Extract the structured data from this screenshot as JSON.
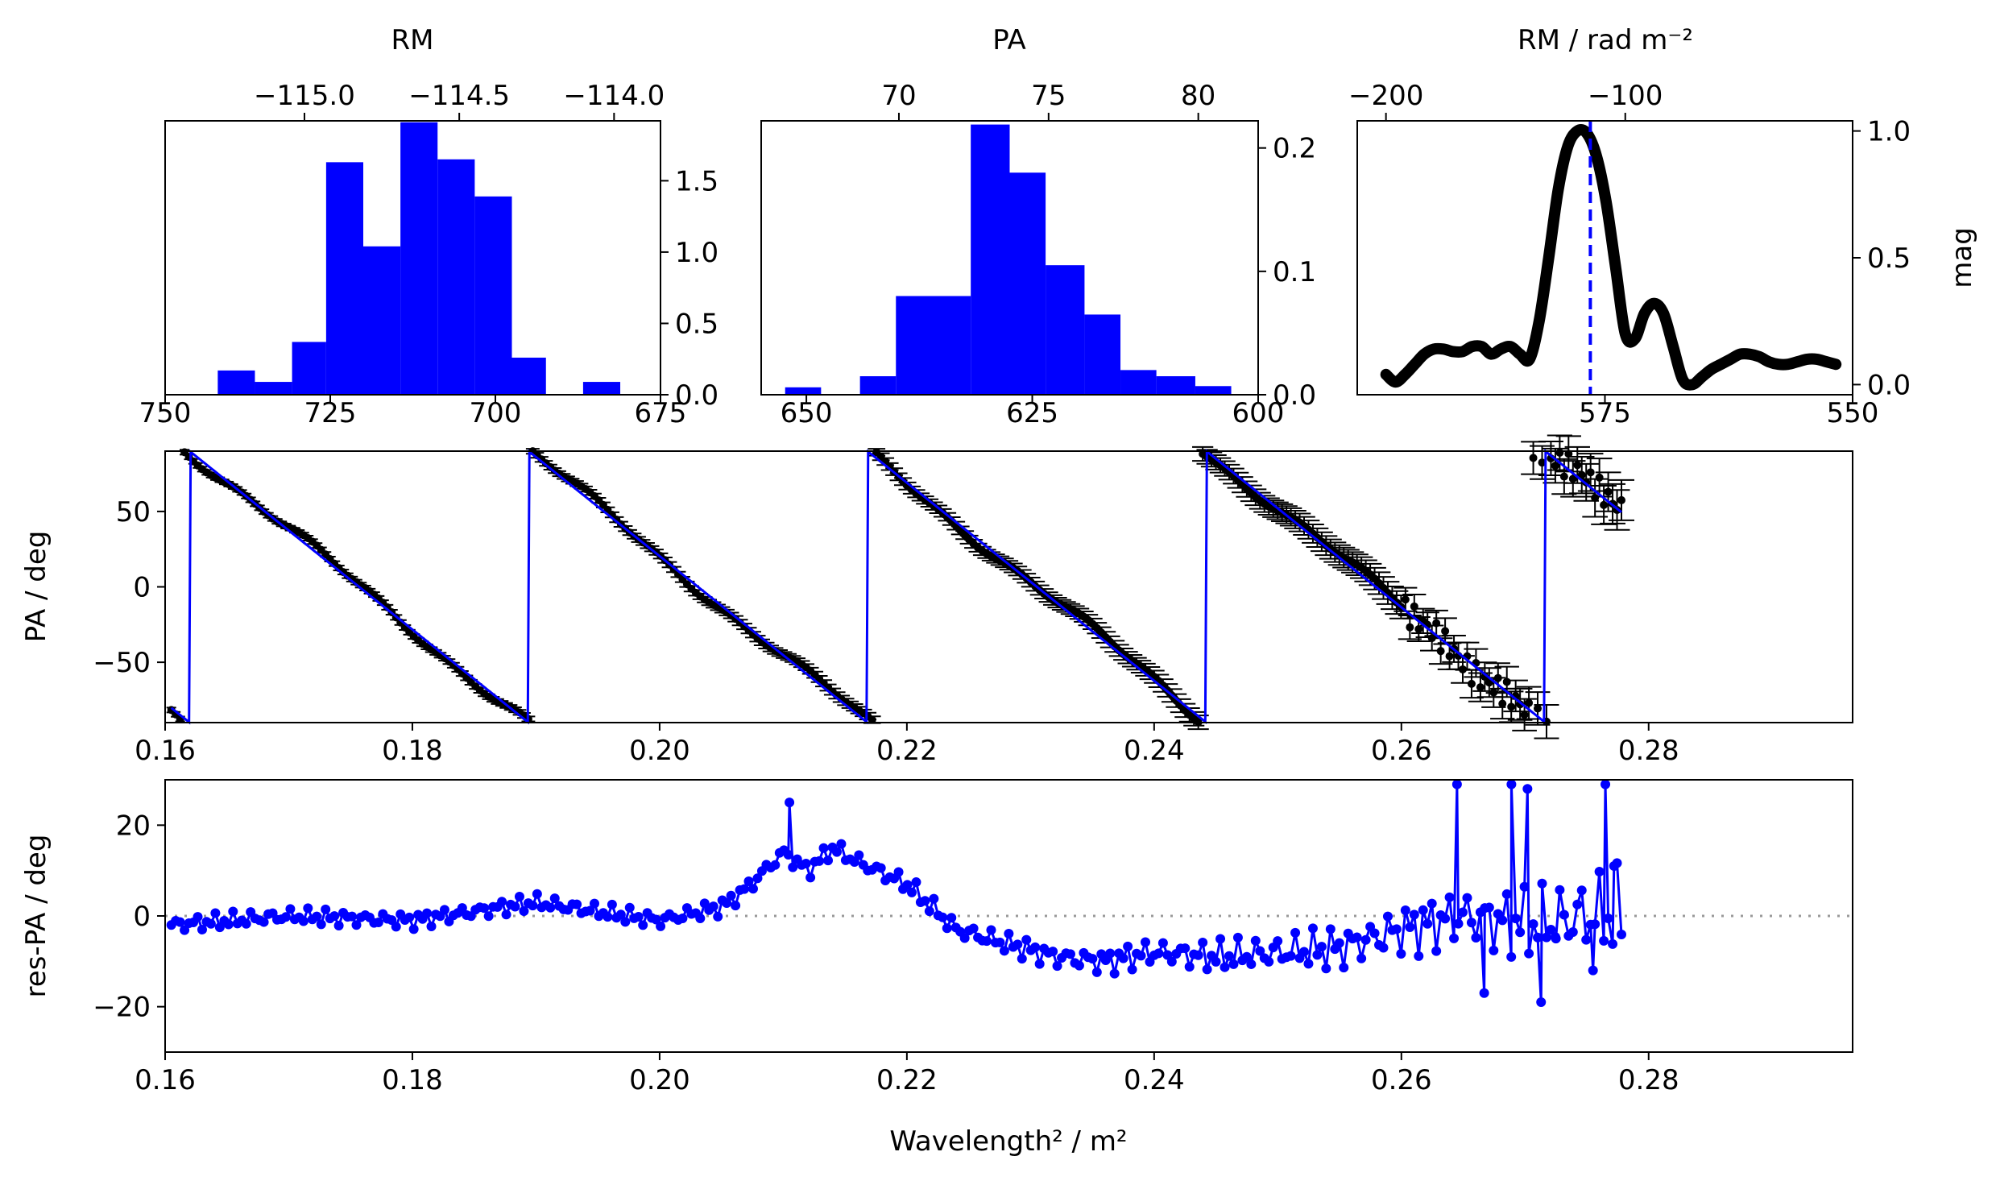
{
  "chart_data": [
    {
      "id": "rm-hist",
      "type": "bar",
      "xlabel_top": "RM",
      "xlim_top": [
        -115.45,
        -113.85
      ],
      "xticks_top": [
        -115.0,
        -114.5,
        -114.0
      ],
      "xtick_labels_top": [
        "−115.0",
        "−114.5",
        "−114.0"
      ],
      "xlim_bottom": [
        750,
        675
      ],
      "xticks_bottom": [
        750,
        725,
        700,
        675
      ],
      "xtick_labels_bottom": [
        "750",
        "725",
        "700",
        "675"
      ],
      "ylim": [
        0,
        1.92
      ],
      "yticks_right": [
        0,
        0.5,
        1.0,
        1.5
      ],
      "ytick_labels_right": [
        "0.0",
        "0.5",
        "1.0",
        "1.5"
      ],
      "bar_color": "#0000ff",
      "bins": [
        {
          "x0": -115.28,
          "x1": -115.16,
          "value": 0.17
        },
        {
          "x0": -115.16,
          "x1": -115.04,
          "value": 0.09
        },
        {
          "x0": -115.04,
          "x1": -114.93,
          "value": 0.37
        },
        {
          "x0": -114.93,
          "x1": -114.81,
          "value": 1.63
        },
        {
          "x0": -114.81,
          "x1": -114.69,
          "value": 1.04
        },
        {
          "x0": -114.69,
          "x1": -114.57,
          "value": 1.91
        },
        {
          "x0": -114.57,
          "x1": -114.45,
          "value": 1.65
        },
        {
          "x0": -114.45,
          "x1": -114.33,
          "value": 1.39
        },
        {
          "x0": -114.33,
          "x1": -114.22,
          "value": 0.26
        },
        {
          "x0": -114.22,
          "x1": -114.1,
          "value": 0.0
        },
        {
          "x0": -114.1,
          "x1": -113.98,
          "value": 0.09
        }
      ]
    },
    {
      "id": "pa-hist",
      "type": "bar",
      "xlabel_top": "PA",
      "xlim_top": [
        65.4,
        82.0
      ],
      "xticks_top": [
        70,
        75,
        80
      ],
      "xtick_labels_top": [
        "70",
        "75",
        "80"
      ],
      "xlim_bottom": [
        655,
        600
      ],
      "xticks_bottom": [
        650,
        625,
        600
      ],
      "xtick_labels_bottom": [
        "650",
        "625",
        "600"
      ],
      "ylim": [
        0,
        0.222
      ],
      "yticks_right": [
        0,
        0.1,
        0.2
      ],
      "ytick_labels_right": [
        "0.0",
        "0.1",
        "0.2"
      ],
      "bar_color": "#0000ff",
      "bins": [
        {
          "x0": 66.2,
          "x1": 67.4,
          "value": 0.006
        },
        {
          "x0": 67.4,
          "x1": 68.7,
          "value": 0.0
        },
        {
          "x0": 68.7,
          "x1": 69.9,
          "value": 0.015
        },
        {
          "x0": 69.9,
          "x1": 72.4,
          "value": 0.08
        },
        {
          "x0": 72.4,
          "x1": 73.7,
          "value": 0.219
        },
        {
          "x0": 73.7,
          "x1": 74.9,
          "value": 0.18
        },
        {
          "x0": 74.9,
          "x1": 76.2,
          "value": 0.105
        },
        {
          "x0": 76.2,
          "x1": 77.4,
          "value": 0.065
        },
        {
          "x0": 77.4,
          "x1": 78.6,
          "value": 0.02
        },
        {
          "x0": 78.6,
          "x1": 79.9,
          "value": 0.015
        },
        {
          "x0": 79.9,
          "x1": 81.1,
          "value": 0.007
        }
      ]
    },
    {
      "id": "rm-spectrum",
      "type": "line",
      "xlabel_top": "RM / rad m⁻²",
      "xlim_top": [
        -212,
        -5
      ],
      "xticks_top": [
        -200,
        -100
      ],
      "xtick_labels_top": [
        "−200",
        "−100"
      ],
      "xlim_bottom": [
        600,
        550
      ],
      "xticks_bottom": [
        575,
        550
      ],
      "xtick_labels_bottom": [
        "575",
        "550"
      ],
      "ylim": [
        -0.04,
        1.04
      ],
      "yticks_right": [
        0,
        0.5,
        1.0
      ],
      "ytick_labels_right": [
        "0.0",
        "0.5",
        "1.0"
      ],
      "ylabel_right": "mag",
      "peak_rm": -114.6,
      "line_color": "#000000",
      "marker_color": "#0000ff",
      "x": [
        -200,
        -196,
        -192,
        -188,
        -184,
        -180,
        -176,
        -172,
        -168,
        -164,
        -160,
        -156,
        -152,
        -148,
        -144,
        -140,
        -136,
        -132,
        -128,
        -124,
        -120,
        -116,
        -112,
        -108,
        -104,
        -100,
        -96,
        -92,
        -88,
        -84,
        -80,
        -76,
        -72,
        -68,
        -64,
        -60,
        -56,
        -52,
        -48,
        -44,
        -40,
        -36,
        -32,
        -28,
        -24,
        -20,
        -16,
        -12
      ],
      "y": [
        0.04,
        0.01,
        0.04,
        0.08,
        0.12,
        0.14,
        0.14,
        0.13,
        0.13,
        0.15,
        0.15,
        0.12,
        0.14,
        0.15,
        0.12,
        0.1,
        0.25,
        0.5,
        0.77,
        0.94,
        1.0,
        0.99,
        0.9,
        0.72,
        0.46,
        0.2,
        0.18,
        0.28,
        0.32,
        0.28,
        0.15,
        0.02,
        0.0,
        0.03,
        0.06,
        0.08,
        0.1,
        0.12,
        0.12,
        0.11,
        0.09,
        0.08,
        0.08,
        0.09,
        0.1,
        0.1,
        0.09,
        0.08
      ]
    },
    {
      "id": "pa-vs-lambda",
      "type": "scatter",
      "ylabel": "PA / deg",
      "xlim": [
        0.16,
        0.2965
      ],
      "xticks": [
        0.16,
        0.18,
        0.2,
        0.22,
        0.24,
        0.26,
        0.28
      ],
      "xtick_labels": [
        "0.16",
        "0.18",
        "0.20",
        "0.22",
        "0.24",
        "0.26",
        "0.28"
      ],
      "ylim": [
        -90,
        90
      ],
      "yticks": [
        -50,
        0,
        50
      ],
      "ytick_labels": [
        "−50",
        "0",
        "50"
      ],
      "point_color": "#000000",
      "fit_color": "#0000ff",
      "fit_rm": -114.6,
      "fit_pa0_deg": 73.6,
      "x_range": [
        0.1605,
        0.2778
      ],
      "n_points": 330
    },
    {
      "id": "residuals",
      "type": "line",
      "ylabel": "res-PA / deg",
      "xlabel": "Wavelength² / m²",
      "xlim": [
        0.16,
        0.2965
      ],
      "xticks": [
        0.16,
        0.18,
        0.2,
        0.22,
        0.24,
        0.26,
        0.28
      ],
      "xtick_labels": [
        "0.16",
        "0.18",
        "0.20",
        "0.22",
        "0.24",
        "0.26",
        "0.28"
      ],
      "ylim": [
        -30,
        30
      ],
      "yticks": [
        -20,
        0,
        20
      ],
      "ytick_labels": [
        "−20",
        "0",
        "20"
      ],
      "line_color": "#0000ff",
      "zero_line_color": "#999999",
      "trend_x": [
        0.1605,
        0.17,
        0.18,
        0.19,
        0.2,
        0.205,
        0.207,
        0.21,
        0.212,
        0.214,
        0.216,
        0.22,
        0.224,
        0.228,
        0.232,
        0.236,
        0.24,
        0.245,
        0.25,
        0.255,
        0.26,
        0.265,
        0.27,
        0.275,
        0.2778
      ],
      "trend_y": [
        -2,
        0,
        -1,
        3,
        -1,
        2,
        6,
        14,
        10,
        15,
        12,
        7,
        -3,
        -6,
        -9,
        -10,
        -8,
        -9,
        -8,
        -7,
        -3,
        0,
        -2,
        0,
        0
      ],
      "outlier_x": [
        0.2105,
        0.2645,
        0.2667,
        0.2689,
        0.2702,
        0.2713,
        0.2725,
        0.2755,
        0.2765,
        0.2772
      ],
      "outlier_y": [
        25,
        29,
        -17,
        29,
        28,
        -19,
        -5,
        -12,
        29,
        11
      ]
    }
  ]
}
